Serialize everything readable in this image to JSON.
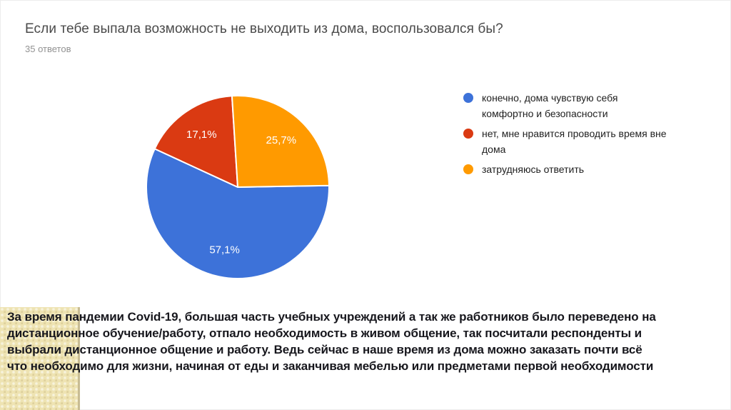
{
  "slide": {
    "question_title": "Если тебе выпала возможность не выходить из дома, воспользовался бы?",
    "responses_count_label": "35 ответов"
  },
  "chart_data": {
    "type": "pie",
    "title": "Если тебе выпала возможность не выходить из дома, воспользовался бы?",
    "subtitle": "35 ответов",
    "total_responses": 35,
    "legend_position": "right",
    "rotation_deg": 89,
    "label_color": "#ffffff",
    "slice_border_color": "#ffffff",
    "slices": [
      {
        "label": "конечно, дома чувствую себя комфортно и безопасности",
        "value": 57.1,
        "percent_label": "57,1%",
        "color": "#3d72d9"
      },
      {
        "label": "нет, мне нравится проводить время вне дома",
        "value": 17.1,
        "percent_label": "17,1%",
        "color": "#da3a12"
      },
      {
        "label": "затрудняюсь ответить",
        "value": 25.7,
        "percent_label": "25,7%",
        "color": "#ff9a00"
      }
    ]
  },
  "footer": {
    "lines": [
      "За время пандемии Covid-19, большая часть учебных учреждений а так же работников было переведено на",
      "дистанционное обучение/работу, отпало необходимость в живом общение, так посчитали респонденты и",
      "выбрали дистанционное общение и работу. Ведь сейчас в наше время из дома можно заказать почти всё",
      "что необходимо для жизни, начиная от еды и заканчивая мебелью или предметами первой необходимости"
    ]
  }
}
